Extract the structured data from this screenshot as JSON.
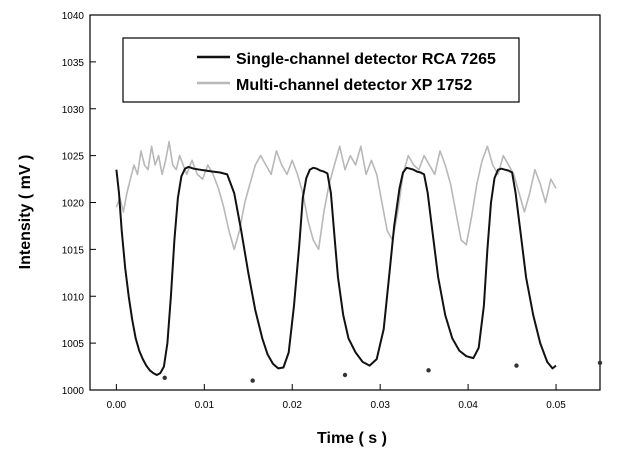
{
  "chart_data": {
    "type": "line",
    "xlabel": "Time ( s )",
    "ylabel": "Intensity ( mV )",
    "xlim": [
      -0.003,
      0.055
    ],
    "ylim": [
      1000,
      1040
    ],
    "x_ticks": [
      0.0,
      0.01,
      0.02,
      0.03,
      0.04,
      0.05
    ],
    "x_tick_labels": [
      "0.00",
      "0.01",
      "0.02",
      "0.03",
      "0.04",
      "0.05"
    ],
    "y_ticks": [
      1000,
      1005,
      1010,
      1015,
      1020,
      1025,
      1030,
      1035,
      1040
    ],
    "y_tick_labels": [
      "1000",
      "1005",
      "1010",
      "1015",
      "1020",
      "1025",
      "1030",
      "1035",
      "1040"
    ],
    "grid": false,
    "legend_position": "top",
    "series": [
      {
        "name": "Single-channel detector RCA 7265",
        "color": "#111111",
        "x": [
          0.0,
          0.0003,
          0.0006,
          0.001,
          0.0014,
          0.0018,
          0.0022,
          0.0026,
          0.003,
          0.0034,
          0.0038,
          0.0042,
          0.0046,
          0.005,
          0.0054,
          0.0058,
          0.0062,
          0.0066,
          0.007,
          0.0074,
          0.0078,
          0.0082,
          0.0088,
          0.0095,
          0.0102,
          0.011,
          0.0118,
          0.0126,
          0.0134,
          0.0142,
          0.015,
          0.0158,
          0.0166,
          0.0172,
          0.0178,
          0.0184,
          0.019,
          0.0196,
          0.0202,
          0.0208,
          0.0212,
          0.0216,
          0.022,
          0.0224,
          0.0228,
          0.0232,
          0.0236,
          0.024,
          0.0244,
          0.0248,
          0.0252,
          0.0258,
          0.0264,
          0.0272,
          0.028,
          0.0288,
          0.0296,
          0.0304,
          0.031,
          0.0316,
          0.0322,
          0.0326,
          0.033,
          0.0334,
          0.0338,
          0.0342,
          0.0346,
          0.035,
          0.0354,
          0.036,
          0.0366,
          0.0374,
          0.0382,
          0.039,
          0.0398,
          0.0406,
          0.0412,
          0.0418,
          0.0422,
          0.0426,
          0.043,
          0.0434,
          0.0438,
          0.0442,
          0.0446,
          0.045,
          0.0454,
          0.046,
          0.0466,
          0.0474,
          0.0482,
          0.049,
          0.0496,
          0.05
        ],
        "y": [
          1023.5,
          1021,
          1017,
          1013,
          1010,
          1007.5,
          1005.5,
          1004.2,
          1003.3,
          1002.6,
          1002.1,
          1001.8,
          1001.6,
          1001.8,
          1002.5,
          1005,
          1010,
          1016,
          1020.5,
          1022.8,
          1023.6,
          1023.8,
          1023.6,
          1023.5,
          1023.4,
          1023.3,
          1023.2,
          1023.0,
          1021,
          1017,
          1012.5,
          1008.5,
          1005.5,
          1003.8,
          1002.8,
          1002.3,
          1002.4,
          1004,
          1009,
          1015.5,
          1020.5,
          1022.6,
          1023.5,
          1023.7,
          1023.6,
          1023.4,
          1023.3,
          1023.1,
          1021,
          1016.5,
          1012,
          1008,
          1005.5,
          1004,
          1003,
          1002.6,
          1003.3,
          1006.5,
          1012,
          1017.5,
          1021.5,
          1023.2,
          1023.7,
          1023.6,
          1023.5,
          1023.3,
          1023.2,
          1023.0,
          1021,
          1016.5,
          1012,
          1008,
          1005.5,
          1004.2,
          1003.6,
          1003.4,
          1004.5,
          1009,
          1015,
          1020,
          1022.6,
          1023.5,
          1023.6,
          1023.5,
          1023.4,
          1023.2,
          1021,
          1016.5,
          1012,
          1008,
          1005,
          1003,
          1002.3,
          1002.6
        ]
      },
      {
        "name": "Multi-channel detector XP 1752",
        "color": "#b8b8b8",
        "x": [
          0.0,
          0.0004,
          0.0008,
          0.0012,
          0.0016,
          0.002,
          0.0024,
          0.0028,
          0.0032,
          0.0036,
          0.004,
          0.0044,
          0.0048,
          0.0052,
          0.0056,
          0.006,
          0.0064,
          0.0068,
          0.0072,
          0.0076,
          0.008,
          0.0086,
          0.0092,
          0.0098,
          0.0104,
          0.011,
          0.0116,
          0.0122,
          0.0128,
          0.0134,
          0.014,
          0.0146,
          0.0152,
          0.0158,
          0.0164,
          0.017,
          0.0176,
          0.0182,
          0.0188,
          0.0194,
          0.02,
          0.0206,
          0.0212,
          0.0218,
          0.0224,
          0.023,
          0.0236,
          0.0242,
          0.0248,
          0.0254,
          0.026,
          0.0266,
          0.0272,
          0.0278,
          0.0284,
          0.029,
          0.0296,
          0.0302,
          0.0308,
          0.0314,
          0.032,
          0.0326,
          0.0332,
          0.0338,
          0.0344,
          0.035,
          0.0356,
          0.0362,
          0.0368,
          0.0374,
          0.038,
          0.0386,
          0.0392,
          0.0398,
          0.0404,
          0.041,
          0.0416,
          0.0422,
          0.0428,
          0.0434,
          0.044,
          0.0446,
          0.0452,
          0.0458,
          0.0464,
          0.047,
          0.0476,
          0.0482,
          0.0488,
          0.0494,
          0.05
        ],
        "y": [
          1019.5,
          1020.5,
          1019,
          1021,
          1022.5,
          1024,
          1023,
          1025.5,
          1024,
          1023.5,
          1026,
          1024,
          1025,
          1023,
          1024.5,
          1026.5,
          1024,
          1023.5,
          1025,
          1024,
          1023,
          1024.5,
          1023,
          1022.5,
          1024,
          1023,
          1021.5,
          1019.5,
          1017,
          1015,
          1017,
          1020,
          1022,
          1024,
          1025,
          1024,
          1023,
          1025.5,
          1024,
          1023,
          1024.5,
          1023,
          1021,
          1018,
          1016,
          1015,
          1019,
          1022,
          1024,
          1026,
          1023.5,
          1025,
          1024,
          1026,
          1023,
          1024.5,
          1023,
          1020,
          1017,
          1016,
          1019,
          1023,
          1025,
          1024,
          1023.5,
          1025,
          1024,
          1023,
          1025.5,
          1024,
          1022,
          1019,
          1016,
          1015.5,
          1018.5,
          1022,
          1024.5,
          1026,
          1024,
          1023,
          1025,
          1024,
          1023,
          1021,
          1019,
          1021,
          1023.5,
          1022,
          1020,
          1022.5,
          1021.5
        ]
      },
      {
        "name": "",
        "color": "#333333",
        "marker": "dot",
        "x": [
          0.0055,
          0.0155,
          0.026,
          0.0355,
          0.0455,
          0.055
        ],
        "y": [
          1001.3,
          1001.0,
          1001.6,
          1002.1,
          1002.6,
          1002.9
        ]
      }
    ]
  }
}
